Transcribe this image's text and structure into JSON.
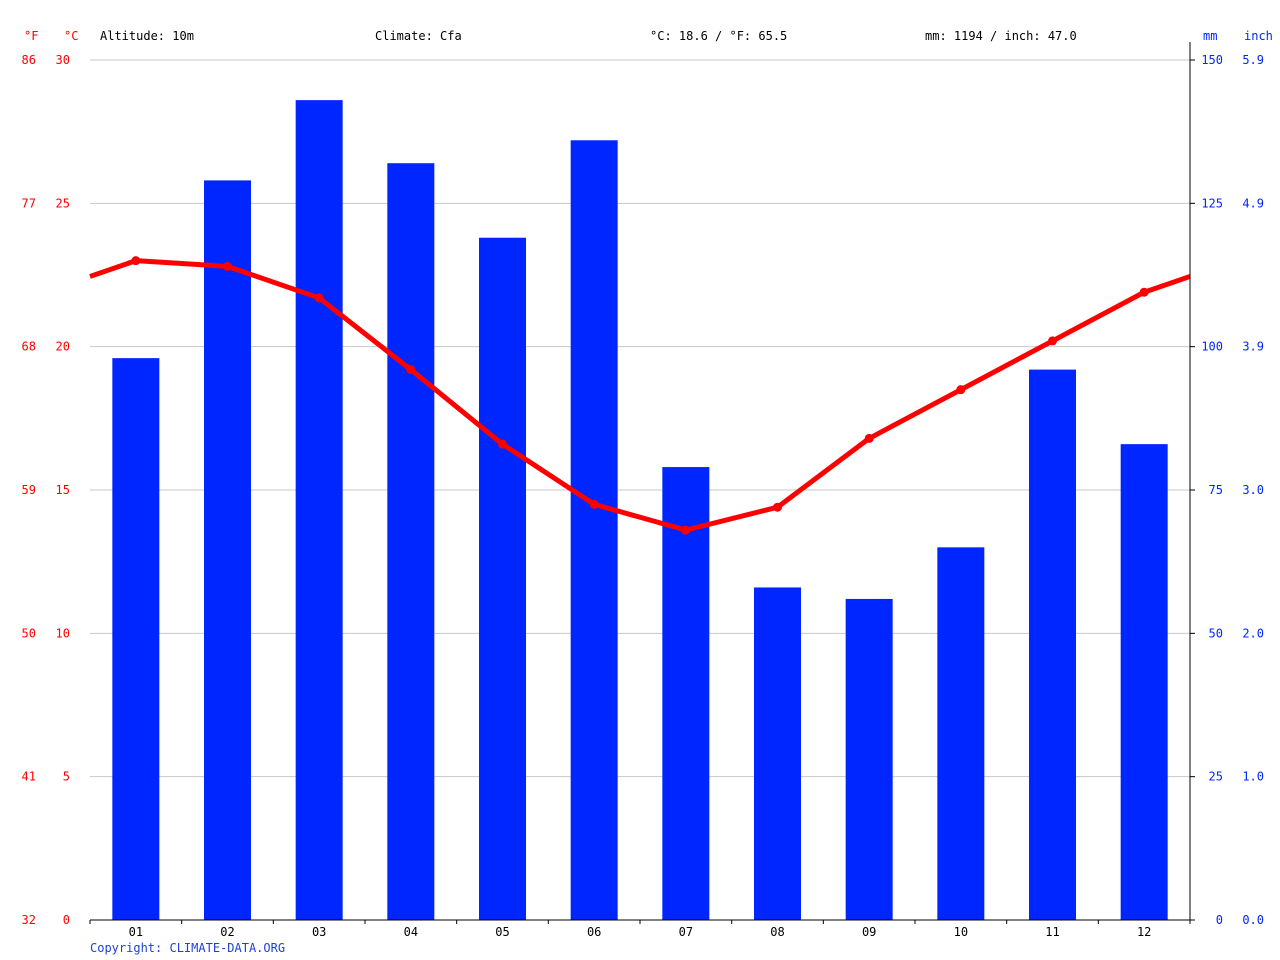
{
  "header": {
    "unit_f": "°F",
    "unit_c": "°C",
    "unit_mm": "mm",
    "unit_inch": "inch",
    "altitude": "Altitude: 10m",
    "climate": "Climate: Cfa",
    "temperature_avg": "°C: 18.6 / °F: 65.5",
    "precipitation_total": "mm: 1194 / inch: 47.0"
  },
  "footer": {
    "copyright": "Copyright: CLIMATE-DATA.ORG"
  },
  "colors": {
    "temperature": "#ff0000",
    "precipitation": "#0026ff",
    "grid": "#c8c8c8",
    "copyright": "#1f3fd9"
  },
  "chart_data": {
    "type": "bar",
    "categories": [
      "01",
      "02",
      "03",
      "04",
      "05",
      "06",
      "07",
      "08",
      "09",
      "10",
      "11",
      "12"
    ],
    "series": [
      {
        "type": "bar",
        "axis": "right",
        "unit": "mm",
        "values": [
          98,
          129,
          143,
          132,
          119,
          136,
          79,
          58,
          56,
          65,
          96,
          83
        ]
      },
      {
        "type": "line",
        "axis": "left",
        "unit": "°C",
        "values": [
          23.0,
          22.8,
          21.7,
          19.2,
          16.6,
          14.5,
          13.6,
          14.4,
          16.8,
          18.5,
          20.2,
          21.9
        ]
      }
    ],
    "left_axis_c": {
      "ylim": [
        0,
        30
      ],
      "ticks": [
        "0",
        "5",
        "10",
        "15",
        "20",
        "25",
        "30"
      ]
    },
    "left_axis_f": {
      "ticks": [
        "32",
        "41",
        "50",
        "59",
        "68",
        "77",
        "86"
      ]
    },
    "right_axis_mm": {
      "ylim": [
        0,
        150
      ],
      "ticks": [
        "0",
        "25",
        "50",
        "75",
        "100",
        "125",
        "150"
      ]
    },
    "right_axis_inch": {
      "ticks": [
        "0.0",
        "1.0",
        "2.0",
        "3.0",
        "3.9",
        "4.9",
        "5.9"
      ]
    },
    "grid": true
  }
}
